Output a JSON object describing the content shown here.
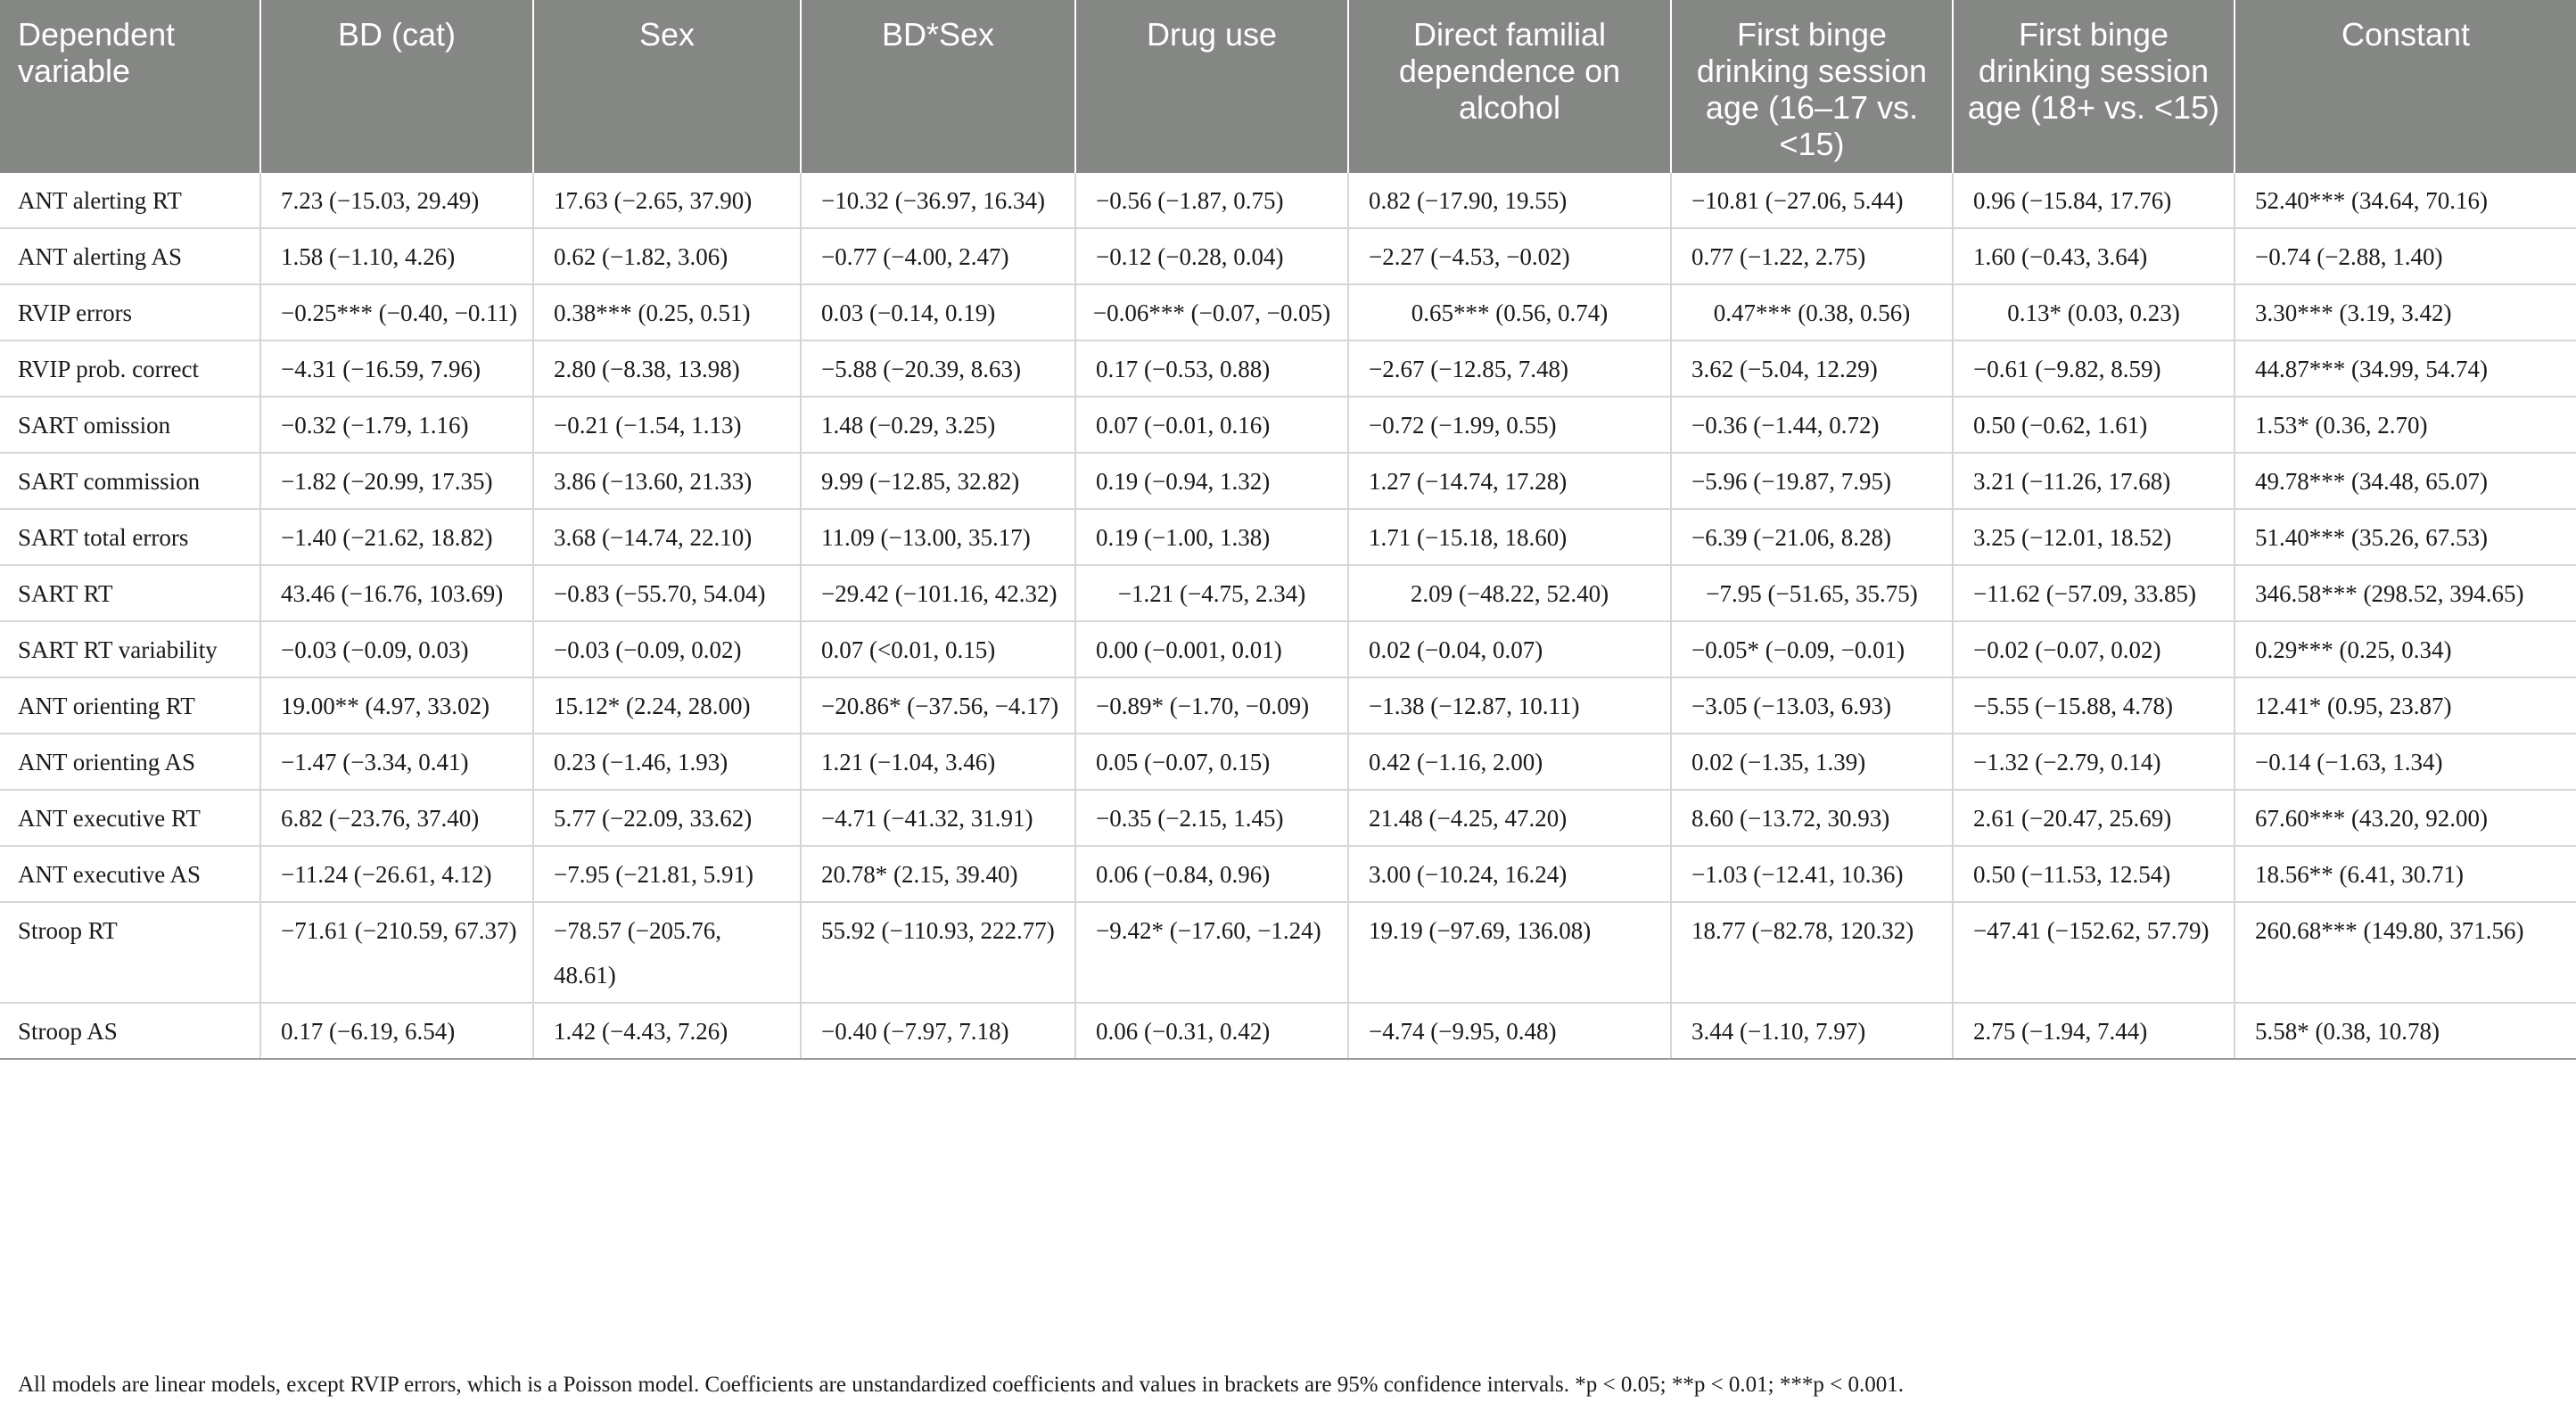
{
  "table": {
    "headers": [
      "Dependent variable",
      "BD (cat)",
      "Sex",
      "BD*Sex",
      "Drug use",
      "Direct familial dependence on alcohol",
      "First binge drinking session age (16–17 vs. <15)",
      "First binge drinking session age (18+ vs. <15)",
      "Constant"
    ],
    "rows": [
      [
        "ANT alerting RT",
        "7.23 (−15.03, 29.49)",
        "17.63 (−2.65, 37.90)",
        "−10.32 (−36.97, 16.34)",
        "−0.56 (−1.87, 0.75)",
        "0.82 (−17.90, 19.55)",
        "−10.81 (−27.06, 5.44)",
        "0.96 (−15.84, 17.76)",
        "52.40*** (34.64, 70.16)"
      ],
      [
        "ANT alerting AS",
        "1.58 (−1.10, 4.26)",
        "0.62 (−1.82, 3.06)",
        "−0.77 (−4.00, 2.47)",
        "−0.12 (−0.28, 0.04)",
        "−2.27 (−4.53, −0.02)",
        "0.77 (−1.22, 2.75)",
        "1.60 (−0.43, 3.64)",
        "−0.74 (−2.88, 1.40)"
      ],
      [
        "RVIP errors",
        "−0.25*** (−0.40, −0.11)",
        "0.38*** (0.25, 0.51)",
        "0.03 (−0.14, 0.19)",
        "−0.06*** (−0.07, −0.05)",
        "0.65*** (0.56, 0.74)",
        "0.47*** (0.38, 0.56)",
        "0.13* (0.03, 0.23)",
        "3.30*** (3.19, 3.42)"
      ],
      [
        "RVIP prob. correct",
        "−4.31 (−16.59, 7.96)",
        "2.80 (−8.38, 13.98)",
        "−5.88 (−20.39, 8.63)",
        "0.17 (−0.53, 0.88)",
        "−2.67 (−12.85, 7.48)",
        "3.62 (−5.04, 12.29)",
        "−0.61 (−9.82, 8.59)",
        "44.87*** (34.99, 54.74)"
      ],
      [
        "SART omission",
        "−0.32 (−1.79, 1.16)",
        "−0.21 (−1.54, 1.13)",
        "1.48 (−0.29, 3.25)",
        "0.07 (−0.01, 0.16)",
        "−0.72 (−1.99, 0.55)",
        "−0.36 (−1.44, 0.72)",
        "0.50 (−0.62, 1.61)",
        "1.53* (0.36, 2.70)"
      ],
      [
        "SART commission",
        "−1.82 (−20.99, 17.35)",
        "3.86 (−13.60, 21.33)",
        "9.99 (−12.85, 32.82)",
        "0.19 (−0.94, 1.32)",
        "1.27 (−14.74, 17.28)",
        "−5.96 (−19.87, 7.95)",
        "3.21 (−11.26, 17.68)",
        "49.78*** (34.48, 65.07)"
      ],
      [
        "SART total errors",
        "−1.40 (−21.62, 18.82)",
        "3.68 (−14.74, 22.10)",
        "11.09 (−13.00, 35.17)",
        "0.19 (−1.00, 1.38)",
        "1.71 (−15.18, 18.60)",
        "−6.39 (−21.06, 8.28)",
        "3.25 (−12.01, 18.52)",
        "51.40*** (35.26, 67.53)"
      ],
      [
        "SART RT",
        "43.46 (−16.76, 103.69)",
        "−0.83 (−55.70, 54.04)",
        "−29.42 (−101.16, 42.32)",
        "−1.21 (−4.75, 2.34)",
        "2.09 (−48.22, 52.40)",
        "−7.95 (−51.65, 35.75)",
        "−11.62 (−57.09, 33.85)",
        "346.58*** (298.52, 394.65)"
      ],
      [
        "SART RT variability",
        "−0.03 (−0.09, 0.03)",
        "−0.03 (−0.09, 0.02)",
        "0.07 (<0.01, 0.15)",
        "0.00 (−0.001, 0.01)",
        "0.02 (−0.04, 0.07)",
        "−0.05* (−0.09, −0.01)",
        "−0.02 (−0.07, 0.02)",
        "0.29*** (0.25, 0.34)"
      ],
      [
        "ANT orienting RT",
        "19.00** (4.97, 33.02)",
        "15.12* (2.24, 28.00)",
        "−20.86* (−37.56, −4.17)",
        "−0.89* (−1.70, −0.09)",
        "−1.38 (−12.87, 10.11)",
        "−3.05 (−13.03, 6.93)",
        "−5.55 (−15.88, 4.78)",
        "12.41* (0.95, 23.87)"
      ],
      [
        "ANT orienting AS",
        "−1.47 (−3.34, 0.41)",
        "0.23 (−1.46, 1.93)",
        "1.21 (−1.04, 3.46)",
        "0.05 (−0.07, 0.15)",
        "0.42 (−1.16, 2.00)",
        "0.02 (−1.35, 1.39)",
        "−1.32 (−2.79, 0.14)",
        "−0.14 (−1.63, 1.34)"
      ],
      [
        "ANT executive RT",
        "6.82 (−23.76, 37.40)",
        "5.77 (−22.09, 33.62)",
        "−4.71 (−41.32, 31.91)",
        "−0.35 (−2.15, 1.45)",
        "21.48 (−4.25, 47.20)",
        "8.60 (−13.72, 30.93)",
        "2.61 (−20.47, 25.69)",
        "67.60*** (43.20, 92.00)"
      ],
      [
        "ANT executive AS",
        "−11.24 (−26.61, 4.12)",
        "−7.95 (−21.81, 5.91)",
        "20.78* (2.15, 39.40)",
        "0.06 (−0.84, 0.96)",
        "3.00 (−10.24, 16.24)",
        "−1.03 (−12.41, 10.36)",
        "0.50 (−11.53, 12.54)",
        "18.56** (6.41, 30.71)"
      ],
      [
        "Stroop RT",
        "−71.61 (−210.59, 67.37)",
        "−78.57 (−205.76, 48.61)",
        "55.92 (−110.93, 222.77)",
        "−9.42* (−17.60, −1.24)",
        "19.19 (−97.69, 136.08)",
        "18.77 (−82.78, 120.32)",
        "−47.41 (−152.62, 57.79)",
        "260.68*** (149.80, 371.56)"
      ],
      [
        "Stroop AS",
        "0.17 (−6.19, 6.54)",
        "1.42 (−4.43, 7.26)",
        "−0.40 (−7.97, 7.18)",
        "0.06 (−0.31, 0.42)",
        "−4.74 (−9.95, 0.48)",
        "3.44 (−1.10, 7.97)",
        "2.75 (−1.94, 7.44)",
        "5.58* (0.38, 10.78)"
      ]
    ],
    "centered_cells": [
      [
        2,
        4
      ],
      [
        2,
        5
      ],
      [
        2,
        6
      ],
      [
        2,
        7
      ],
      [
        7,
        4
      ],
      [
        7,
        5
      ],
      [
        7,
        6
      ]
    ]
  },
  "footnote": "All models are linear models, except RVIP errors, which is a Poisson model. Coefficients are unstandardized coefficients and values in brackets are 95% confidence intervals. *p < 0.05; **p < 0.01; ***p < 0.001."
}
